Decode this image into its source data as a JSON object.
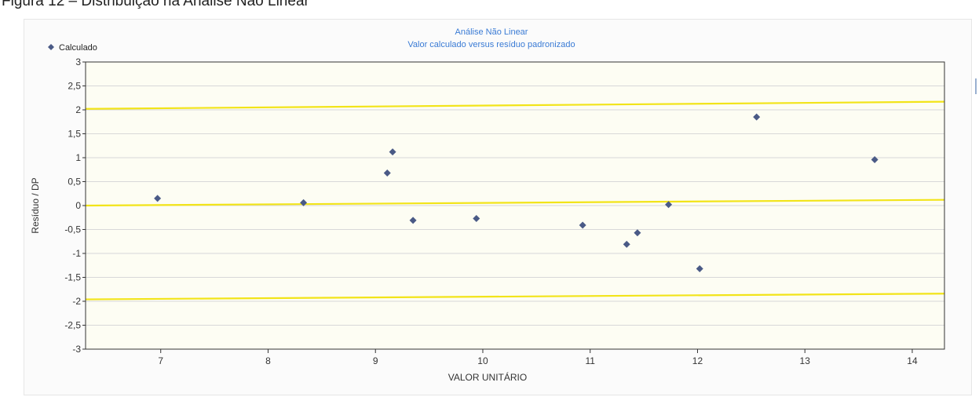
{
  "figure_caption": "Figura 12 – Distribuição na Análise Não Linear",
  "colors": {
    "title": "#3a7bd5",
    "point": "#4a5a86",
    "reference_lines": "#f2e419",
    "grid": "#d8d8d8",
    "plot_background": "#fdfdf3"
  },
  "chart_data": {
    "type": "scatter",
    "title": "Análise Não Linear",
    "subtitle": "Valor calculado versus resíduo padronizado",
    "xlabel": "VALOR UNITÁRIO",
    "ylabel": "Resíduo / DP",
    "xlim": [
      6.3,
      14.3
    ],
    "ylim": [
      -3,
      3
    ],
    "xticks": [
      7,
      8,
      9,
      10,
      11,
      12,
      13,
      14
    ],
    "yticks": [
      3,
      2.5,
      2,
      1.5,
      1,
      0.5,
      0,
      -0.5,
      -1,
      -1.5,
      -2,
      -2.5,
      -3
    ],
    "ytick_labels": [
      "3",
      "2,5",
      "2",
      "1,5",
      "1",
      "0,5",
      "0",
      "-0,5",
      "-1",
      "-1,5",
      "-2",
      "-2,5",
      "-3"
    ],
    "grid": true,
    "legend": {
      "position": "top-left",
      "entries": [
        "Calculado"
      ]
    },
    "series": [
      {
        "name": "Calculado",
        "marker": "diamond",
        "points": [
          {
            "x": 6.97,
            "y": 0.15
          },
          {
            "x": 8.33,
            "y": 0.06
          },
          {
            "x": 9.11,
            "y": 0.68
          },
          {
            "x": 9.16,
            "y": 1.12
          },
          {
            "x": 9.35,
            "y": -0.31
          },
          {
            "x": 9.94,
            "y": -0.27
          },
          {
            "x": 10.93,
            "y": -0.41
          },
          {
            "x": 11.34,
            "y": -0.81
          },
          {
            "x": 11.44,
            "y": -0.57
          },
          {
            "x": 11.73,
            "y": 0.02
          },
          {
            "x": 12.02,
            "y": -1.32
          },
          {
            "x": 12.55,
            "y": 1.85
          },
          {
            "x": 13.65,
            "y": 0.96
          }
        ]
      }
    ],
    "reference_lines": [
      {
        "y_start": 2.02,
        "y_end": 2.17
      },
      {
        "y_start": 0.0,
        "y_end": 0.12
      },
      {
        "y_start": -1.96,
        "y_end": -1.84
      }
    ]
  }
}
